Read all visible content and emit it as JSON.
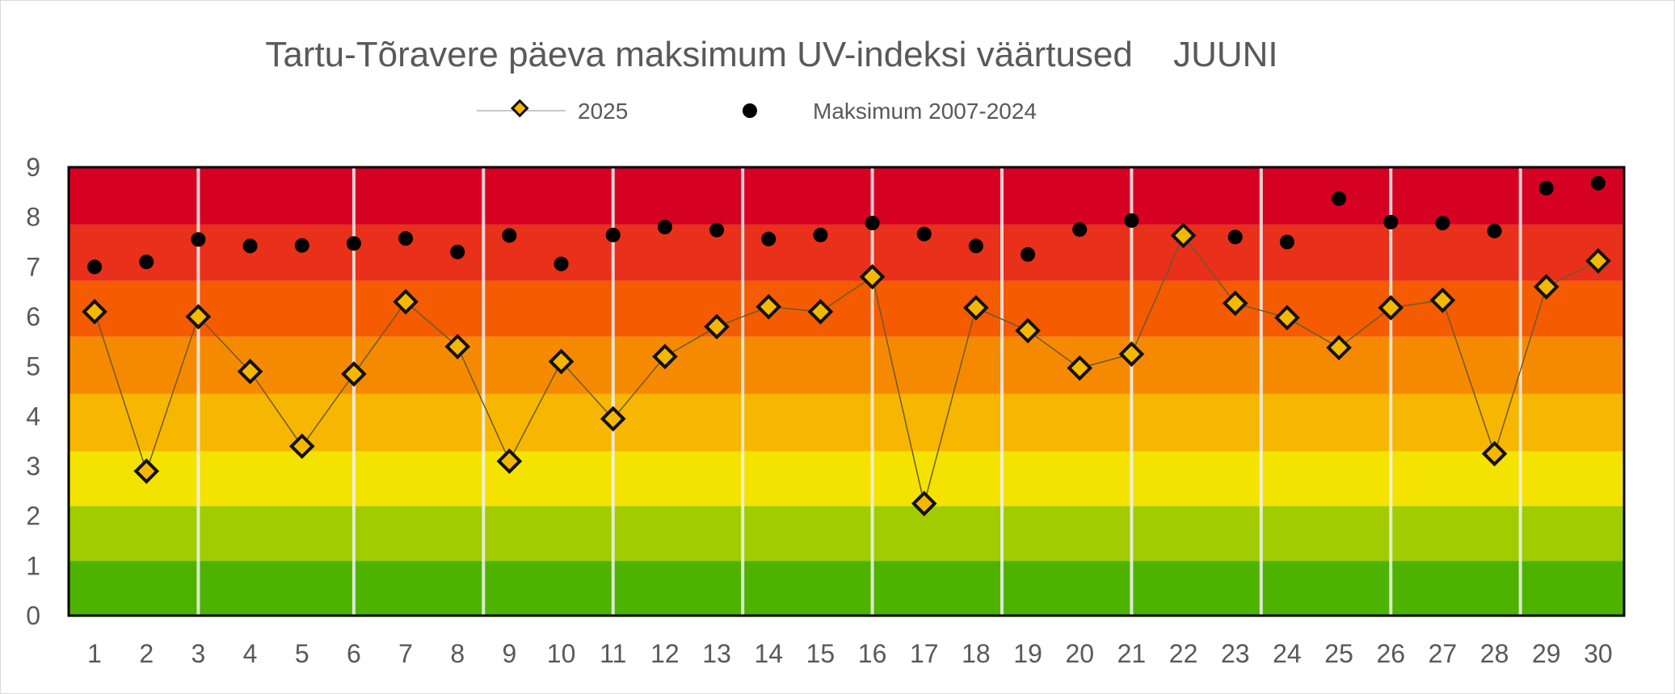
{
  "chart_data": {
    "type": "line",
    "title": "Tartu-Tõravere päeva maksimum UV-indeksi väärtused",
    "title_suffix": "JUUNI",
    "xlabel": "",
    "ylabel": "",
    "ylim": [
      0,
      9
    ],
    "yticks": [
      "0",
      "1",
      "2",
      "3",
      "4",
      "5",
      "6",
      "7",
      "8",
      "9"
    ],
    "categories": [
      "1",
      "2",
      "3",
      "4",
      "5",
      "6",
      "7",
      "8",
      "9",
      "10",
      "11",
      "12",
      "13",
      "14",
      "15",
      "16",
      "17",
      "18",
      "19",
      "20",
      "21",
      "22",
      "23",
      "24",
      "25",
      "26",
      "27",
      "28",
      "29",
      "30"
    ],
    "legend_position": "top-center",
    "grid": false,
    "series": [
      {
        "name": "2025",
        "style": "line-diamond",
        "color": "#f5b800",
        "values": [
          6.1,
          2.9,
          6.0,
          4.9,
          3.4,
          4.85,
          6.3,
          5.4,
          3.1,
          5.1,
          3.95,
          5.2,
          5.8,
          6.2,
          6.1,
          6.8,
          2.25,
          6.18,
          5.72,
          4.97,
          5.25,
          7.63,
          6.27,
          5.98,
          5.38,
          6.18,
          6.33,
          3.25,
          6.6,
          7.12
        ]
      },
      {
        "name": "Maksimum  2007-2024",
        "style": "scatter-dot",
        "color": "#000000",
        "values": [
          7.0,
          7.1,
          7.55,
          7.42,
          7.43,
          7.47,
          7.57,
          7.3,
          7.63,
          7.06,
          7.64,
          7.8,
          7.74,
          7.56,
          7.64,
          7.88,
          7.66,
          7.42,
          7.25,
          7.75,
          7.93,
          7.6,
          7.6,
          7.5,
          8.37,
          7.9,
          7.88,
          7.72,
          8.58,
          8.68
        ]
      }
    ],
    "uv_bands": [
      {
        "from": 0,
        "to": 1.1,
        "color": "#4db300"
      },
      {
        "from": 1.1,
        "to": 2.2,
        "color": "#a0cc00"
      },
      {
        "from": 2.2,
        "to": 3.3,
        "color": "#f4e300"
      },
      {
        "from": 3.3,
        "to": 4.45,
        "color": "#f7b600"
      },
      {
        "from": 4.45,
        "to": 5.6,
        "color": "#f58a00"
      },
      {
        "from": 5.6,
        "to": 6.72,
        "color": "#f55b00"
      },
      {
        "from": 6.72,
        "to": 7.85,
        "color": "#e8301a"
      },
      {
        "from": 7.85,
        "to": 9,
        "color": "#d60022"
      }
    ],
    "week_separators_after_day": [
      2.5,
      5.5,
      8,
      10.5,
      13,
      15.5,
      18,
      20.5,
      23,
      25.5,
      28
    ]
  }
}
